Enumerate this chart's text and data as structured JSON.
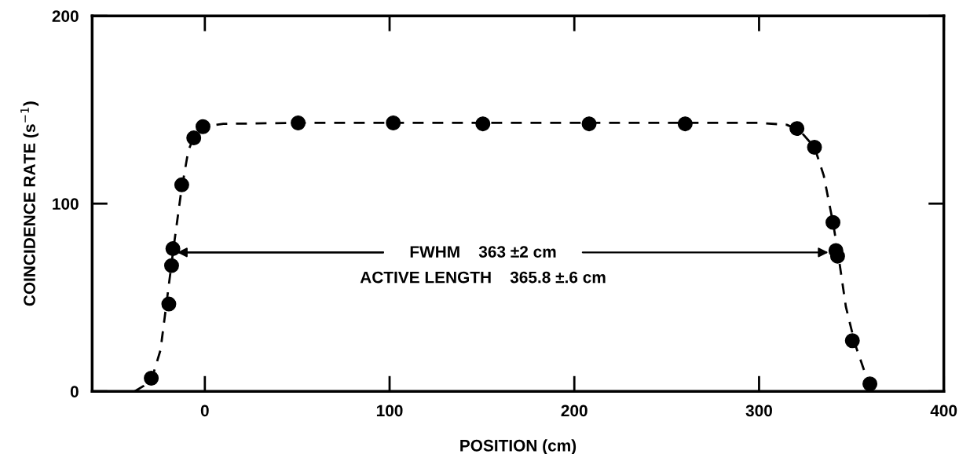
{
  "chart_data": {
    "type": "scatter",
    "xlabel": "POSITION (cm)",
    "ylabel": "COINCIDENCE RATE (s$^{−1}$)",
    "xlim": [
      -61,
      400
    ],
    "ylim": [
      0,
      200
    ],
    "xticks": [
      0,
      100,
      200,
      300,
      400
    ],
    "yticks": [
      0,
      100,
      200
    ],
    "grid": false,
    "legend": false,
    "marker": "circle",
    "series": [
      {
        "color": "#000000",
        "x": [
          -29,
          -19.5,
          -18,
          -17.3,
          -12.5,
          -6,
          -1,
          50.5,
          102,
          150.5,
          208,
          260,
          320.5,
          330,
          340,
          341.6,
          342.5,
          350.5,
          360
        ],
        "values": [
          7,
          46.5,
          67,
          76,
          110,
          135,
          141,
          143,
          143,
          142.5,
          142.5,
          142.5,
          140,
          130,
          90,
          75,
          72,
          27,
          4
        ]
      },
      {
        "type": "line",
        "line_style": "dashed",
        "marker": "none",
        "color": "#000000",
        "x": [
          -38,
          -33,
          -28,
          -24,
          -21,
          -17,
          -13,
          -9,
          -5,
          0,
          10,
          50,
          300,
          315,
          322,
          330,
          335,
          340,
          343,
          347,
          352,
          358,
          363
        ],
        "values": [
          0,
          3,
          9,
          22,
          45,
          76,
          105,
          128,
          138,
          141,
          142.5,
          143,
          143,
          142,
          139,
          130,
          115,
          90,
          72,
          45,
          25,
          8,
          0
        ]
      },
      {
        "type": "line",
        "line_style": "solid",
        "marker": "none",
        "color": "#000000",
        "x": [
          -15,
          96.5,
          204.5,
          337.5
        ],
        "values": [
          74,
          74,
          null,
          74
        ]
      }
    ],
    "annotations": [
      "FWHM    363 ±2 cm",
      "ACTIVE LENGTH    365.8 ±.6 cm"
    ]
  }
}
